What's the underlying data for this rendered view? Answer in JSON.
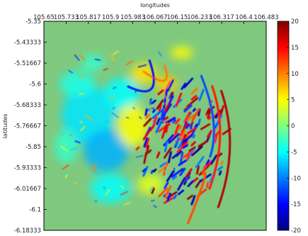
{
  "chart_data": {
    "type": "heatmap",
    "title": "",
    "xlabel": "longitudes",
    "ylabel": "latitudes",
    "x_ticks": [
      "105.65",
      "105.733",
      "105.817",
      "105.9",
      "105.983",
      "106.067",
      "106.15",
      "106.233",
      "106.317",
      "106.4",
      "106.483"
    ],
    "y_ticks": [
      "-5.35",
      "-5.43333",
      "-5.51667",
      "-5.6",
      "-5.68333",
      "-5.76667",
      "-5.85",
      "-5.93333",
      "-6.01667",
      "-6.1",
      "-6.18333"
    ],
    "xlim": [
      105.65,
      106.483
    ],
    "ylim": [
      -6.18333,
      -5.35
    ],
    "x_axis_position": "top",
    "grid": false,
    "colormap": "jet",
    "background_color": "#7fc97f",
    "colorbar": {
      "min": -20,
      "max": 20,
      "ticks": [
        "20",
        "15",
        "10",
        "5",
        "0",
        "-5",
        "-10",
        "-15",
        "-20"
      ],
      "placement": "right",
      "colors": [
        "#00007f",
        "#0000ff",
        "#007fff",
        "#00ffff",
        "#7fff7f",
        "#ffff00",
        "#ff7f00",
        "#ff0000",
        "#7f0000"
      ]
    }
  }
}
